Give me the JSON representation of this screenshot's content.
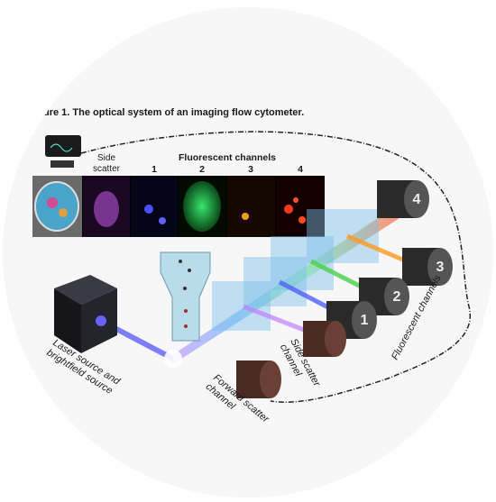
{
  "figure": {
    "title": "ure 1. The optical system of an imaging flow cytometer.",
    "strip": {
      "side_scatter": [
        "Side",
        "scatter"
      ],
      "heading": "Fluorescent channels",
      "channels": [
        "1",
        "2",
        "3",
        "4"
      ]
    },
    "detectors": [
      "1",
      "2",
      "3",
      "4"
    ],
    "labels": {
      "laser": [
        "Laser source and",
        "brightfield source"
      ],
      "side_scatter_channel": [
        "Side scatter",
        "channel"
      ],
      "forward_scatter_channel": [
        "Forward scatter",
        "channel"
      ],
      "fluorescent_channels": "Fluorescent channels"
    }
  }
}
